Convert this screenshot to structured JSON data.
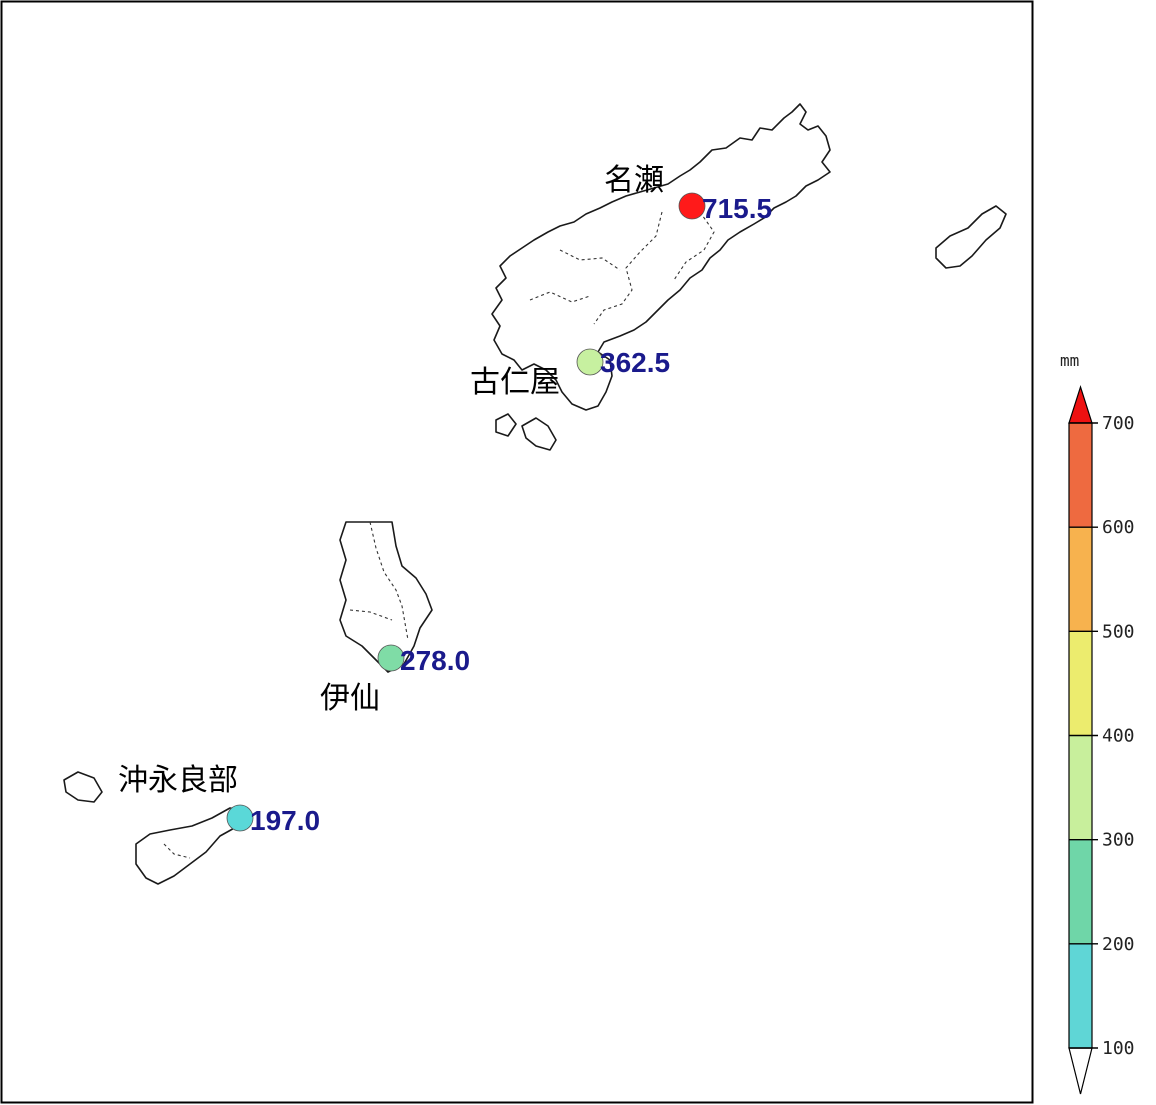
{
  "map": {
    "stations": [
      {
        "name": "名瀬",
        "value": "715.5",
        "amount": 715.5,
        "color": "#ff1a1a"
      },
      {
        "name": "古仁屋",
        "value": "362.5",
        "amount": 362.5,
        "color": "#c7f0a0"
      },
      {
        "name": "伊仙",
        "value": "278.0",
        "amount": 278.0,
        "color": "#7fdca6"
      },
      {
        "name": "沖永良部",
        "value": "197.0",
        "amount": 197.0,
        "color": "#5ad8d8"
      }
    ],
    "value_text_color": "#1a1a8c"
  },
  "legend": {
    "unit": "mm",
    "ticks": [
      "100",
      "200",
      "300",
      "400",
      "500",
      "600",
      "700"
    ],
    "bins": [
      {
        "from": 100,
        "to": 200,
        "color": "#5fd6d6"
      },
      {
        "from": 200,
        "to": 300,
        "color": "#6fd6a8"
      },
      {
        "from": 300,
        "to": 400,
        "color": "#c8ef9c"
      },
      {
        "from": 400,
        "to": 500,
        "color": "#ecec6e"
      },
      {
        "from": 500,
        "to": 600,
        "color": "#f7b24e"
      },
      {
        "from": 600,
        "to": 700,
        "color": "#ee6a40"
      }
    ],
    "over_color": "#ee1111",
    "under_color": "#ffffff"
  }
}
